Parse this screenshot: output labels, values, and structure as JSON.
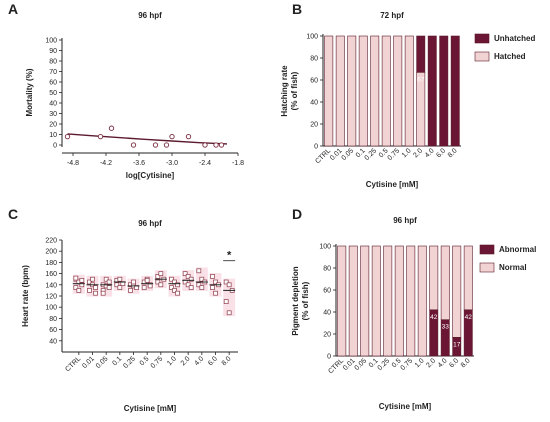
{
  "colors": {
    "line": "#5c1a2e",
    "marker": "#7a2a3c",
    "hatched": "#f2d3d3",
    "unhatched": "#6b1634",
    "normal": "#f2d3d3",
    "abnormal": "#6b1634",
    "scatter_bg": "#f6c9d6",
    "scatter_marker": "#8a3a48"
  },
  "chart_data": [
    {
      "panel": "A",
      "type": "scatter",
      "title": "96 hpf",
      "xlabel": "log[Cytisine]",
      "ylabel": "Mortality (%)",
      "xlim": [
        -5.0,
        -1.8
      ],
      "ylim": [
        0,
        100
      ],
      "xticks": [
        "-4.8",
        "-4.2",
        "-3.6",
        "-3.0",
        "-2.4",
        "-1.8"
      ],
      "yticks": [
        "0",
        "10",
        "20",
        "30",
        "40",
        "50",
        "60",
        "70",
        "80",
        "90",
        "100"
      ],
      "points": [
        {
          "x": -4.9,
          "y": 8
        },
        {
          "x": -4.3,
          "y": 8
        },
        {
          "x": -4.1,
          "y": 16
        },
        {
          "x": -3.7,
          "y": 0
        },
        {
          "x": -3.3,
          "y": 0
        },
        {
          "x": -3.1,
          "y": 0
        },
        {
          "x": -3.0,
          "y": 8
        },
        {
          "x": -2.7,
          "y": 8
        },
        {
          "x": -2.4,
          "y": 0
        },
        {
          "x": -2.2,
          "y": 0
        },
        {
          "x": -2.1,
          "y": 0
        }
      ],
      "fit": [
        {
          "x": -4.9,
          "y": 10.5
        },
        {
          "x": -4.5,
          "y": 9.0
        },
        {
          "x": -4.0,
          "y": 7.2
        },
        {
          "x": -3.5,
          "y": 5.4
        },
        {
          "x": -3.0,
          "y": 3.8
        },
        {
          "x": -2.5,
          "y": 2.2
        },
        {
          "x": -2.0,
          "y": 1.0
        }
      ]
    },
    {
      "panel": "B",
      "type": "bar",
      "stacked": true,
      "title": "72 hpf",
      "xlabel": "Cytisine [mM]",
      "ylabel": "Hatching rate\n(% of fish)",
      "ylim": [
        0,
        100
      ],
      "yticks": [
        "0",
        "20",
        "40",
        "60",
        "80",
        "100"
      ],
      "categories": [
        "CTRL",
        "0.01",
        "0.05",
        "0.1",
        "0.25",
        "0.5",
        "0.75",
        "1.0",
        "2.0",
        "4.0",
        "6.0",
        "8.0"
      ],
      "series": [
        {
          "name": "Hatched",
          "values": [
            100,
            100,
            100,
            100,
            100,
            100,
            100,
            100,
            67,
            0,
            0,
            0
          ]
        },
        {
          "name": "Unhatched",
          "values": [
            0,
            0,
            0,
            0,
            0,
            0,
            0,
            0,
            33,
            100,
            100,
            100
          ]
        }
      ],
      "data_labels": [
        {
          "category": "2.0",
          "text": "67"
        }
      ],
      "legend": "right"
    },
    {
      "panel": "C",
      "type": "scatter",
      "title": "96 hpf",
      "xlabel": "Cytisine [mM]",
      "ylabel": "Heart rate (bpm)",
      "ylim": [
        20,
        220
      ],
      "yticks": [
        "40",
        "60",
        "80",
        "100",
        "120",
        "140",
        "160",
        "180",
        "200",
        "220"
      ],
      "categories": [
        "CTRL",
        "0.01",
        "0.05",
        "0.1",
        "0.25",
        "0.5",
        "0.75",
        "1.0",
        "2.0",
        "4.0",
        "6.0",
        "8.0"
      ],
      "means": [
        142,
        140,
        140,
        145,
        138,
        142,
        150,
        142,
        148,
        145,
        140,
        130
      ],
      "groups": [
        [
          150,
          145,
          140,
          135,
          130,
          148,
          152
        ],
        [
          145,
          140,
          135,
          130,
          150,
          125
        ],
        [
          140,
          138,
          135,
          130,
          150,
          145,
          125
        ],
        [
          148,
          150,
          142,
          140,
          135
        ],
        [
          140,
          138,
          135,
          130,
          145
        ],
        [
          145,
          150,
          140,
          135,
          148,
          138
        ],
        [
          155,
          160,
          150,
          145,
          140
        ],
        [
          150,
          145,
          140,
          135,
          130,
          125
        ],
        [
          160,
          155,
          150,
          145,
          140,
          135
        ],
        [
          165,
          150,
          145,
          140,
          135
        ],
        [
          155,
          145,
          140,
          135,
          125
        ],
        [
          145,
          140,
          130,
          110,
          90
        ]
      ],
      "annotations": [
        {
          "category": "8.0",
          "text": "*"
        }
      ]
    },
    {
      "panel": "D",
      "type": "bar",
      "stacked": true,
      "title": "96 hpf",
      "xlabel": "Cytisine [mM]",
      "ylabel": "Pigment depletion\n(% of fish)",
      "ylim": [
        0,
        100
      ],
      "yticks": [
        "0",
        "20",
        "40",
        "60",
        "80",
        "100"
      ],
      "categories": [
        "CTRL",
        "0.01",
        "0.05",
        "0.1",
        "0.25",
        "0.5",
        "0.75",
        "1.0",
        "2.0",
        "4.0",
        "6.0",
        "8.0"
      ],
      "series": [
        {
          "name": "Abnormal",
          "values": [
            0,
            0,
            0,
            0,
            0,
            0,
            0,
            0,
            42,
            33,
            17,
            42
          ]
        },
        {
          "name": "Normal",
          "values": [
            100,
            100,
            100,
            100,
            100,
            100,
            100,
            100,
            58,
            67,
            83,
            58
          ]
        }
      ],
      "data_labels": [
        {
          "category": "2.0",
          "text": "42"
        },
        {
          "category": "4.0",
          "text": "33"
        },
        {
          "category": "6.0",
          "text": "17"
        },
        {
          "category": "8.0",
          "text": "42"
        }
      ],
      "legend": "right"
    }
  ]
}
